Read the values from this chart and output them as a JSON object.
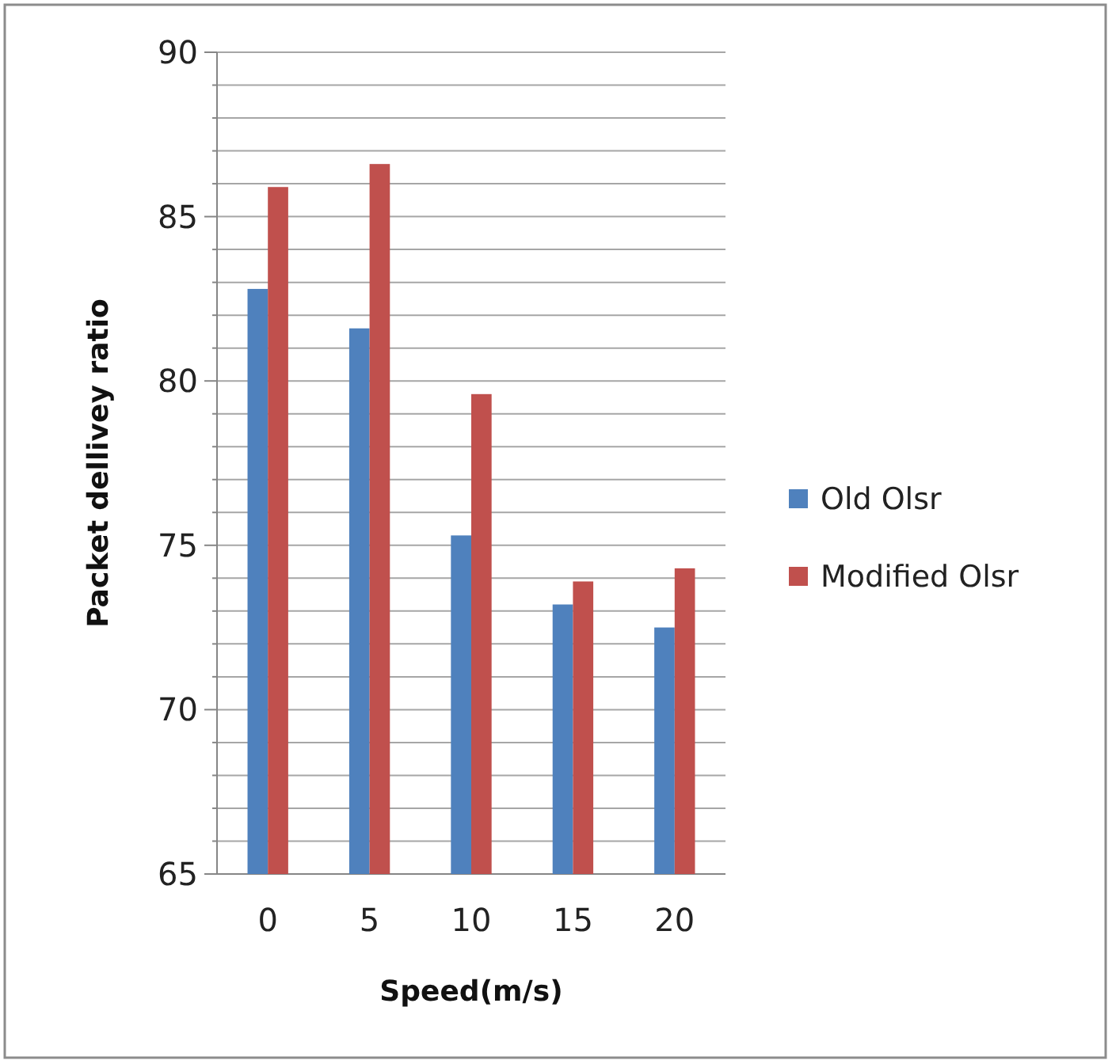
{
  "chart_data": {
    "type": "bar",
    "xlabel": "Speed(m/s)",
    "ylabel": "Packet dellivey ratio",
    "categories": [
      "0",
      "5",
      "10",
      "15",
      "20"
    ],
    "series": [
      {
        "name": "Old Olsr",
        "color": "#4f81bd",
        "values": [
          82.8,
          81.6,
          75.3,
          73.2,
          72.5
        ]
      },
      {
        "name": "Modified Olsr",
        "color": "#c0504d",
        "values": [
          85.9,
          86.6,
          79.6,
          73.9,
          74.3
        ]
      }
    ],
    "ylim": [
      65,
      90
    ],
    "yticks": [
      65,
      {
        "value": 66,
        "label": null
      },
      {
        "value": 67,
        "label": null
      },
      {
        "value": 68,
        "label": null
      },
      {
        "value": 69,
        "label": null
      },
      70,
      {
        "value": 71,
        "label": null
      },
      {
        "value": 72,
        "label": null
      },
      {
        "value": 73,
        "label": null
      },
      {
        "value": 74,
        "label": null
      },
      75,
      {
        "value": 76,
        "label": null
      },
      {
        "value": 77,
        "label": null
      },
      {
        "value": 78,
        "label": null
      },
      {
        "value": 79,
        "label": null
      },
      80,
      {
        "value": 81,
        "label": null
      },
      {
        "value": 82,
        "label": null
      },
      {
        "value": 83,
        "label": null
      },
      {
        "value": 84,
        "label": null
      },
      85,
      {
        "value": 86,
        "label": null
      },
      {
        "value": 87,
        "label": null
      },
      {
        "value": 88,
        "label": null
      },
      {
        "value": 89,
        "label": null
      },
      90
    ],
    "grid": "y",
    "legend": "right"
  }
}
